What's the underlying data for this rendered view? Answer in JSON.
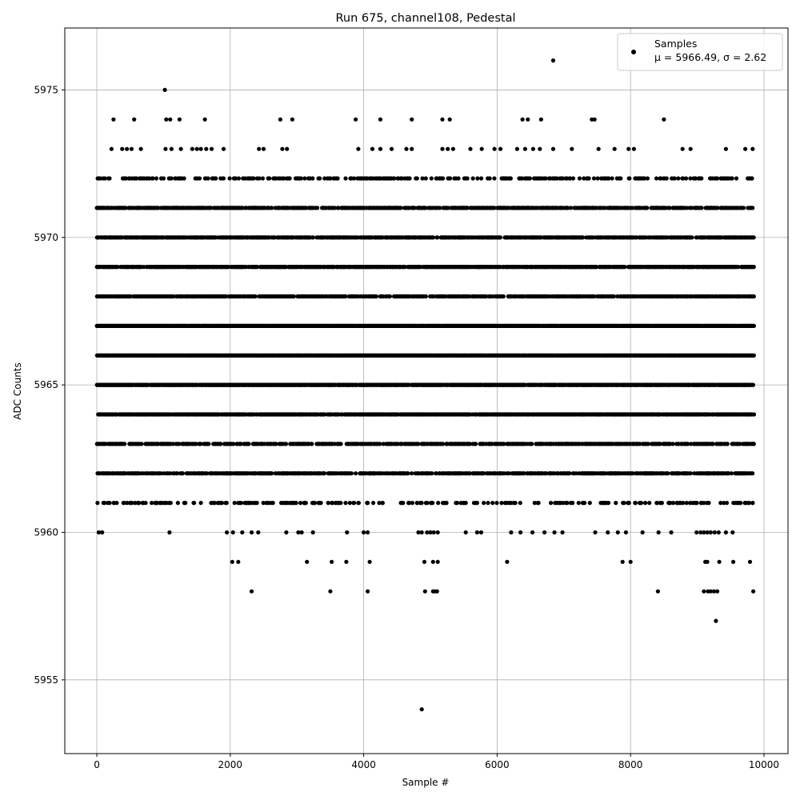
{
  "chart_data": {
    "type": "scatter",
    "title": "Run 675, channel108, Pedestal",
    "xlabel": "Sample #",
    "ylabel": "ADC Counts",
    "xlim": [
      -480,
      10360
    ],
    "ylim": [
      5952.5,
      5977.1
    ],
    "xticks": [
      0,
      2000,
      4000,
      6000,
      8000,
      10000
    ],
    "xtick_labels": [
      "0",
      "2000",
      "4000",
      "6000",
      "8000",
      "10000"
    ],
    "yticks": [
      5955,
      5960,
      5965,
      5970,
      5975
    ],
    "ytick_labels": [
      "5955",
      "5960",
      "5965",
      "5970",
      "5975"
    ],
    "grid": true,
    "legend": {
      "placement": "top-right",
      "entries": [
        {
          "series": "Samples",
          "line1": "Samples",
          "line2": "μ = 5966.49, σ = 2.62"
        }
      ]
    },
    "marker_color": "#000000",
    "series": [
      {
        "name": "Samples",
        "x_range": [
          0,
          9850
        ],
        "n_samples": 10000,
        "mean": 5966.49,
        "sigma": 2.62,
        "level_density": [
          {
            "y": 5972,
            "density": 0.25
          },
          {
            "y": 5971,
            "density": 0.55
          },
          {
            "y": 5970,
            "density": 0.7
          },
          {
            "y": 5969,
            "density": 0.75
          },
          {
            "y": 5968,
            "density": 0.55
          },
          {
            "y": 5967,
            "density": 0.98
          },
          {
            "y": 5966,
            "density": 0.98
          },
          {
            "y": 5965,
            "density": 0.85
          },
          {
            "y": 5964,
            "density": 0.75
          },
          {
            "y": 5963,
            "density": 0.5
          },
          {
            "y": 5962,
            "density": 0.55
          },
          {
            "y": 5961,
            "density": 0.18
          }
        ],
        "points": [
          {
            "x": 1020,
            "y": 5975
          },
          {
            "x": 6840,
            "y": 5976
          },
          {
            "x": 250,
            "y": 5974
          },
          {
            "x": 560,
            "y": 5974
          },
          {
            "x": 1040,
            "y": 5974
          },
          {
            "x": 1100,
            "y": 5974
          },
          {
            "x": 1240,
            "y": 5974
          },
          {
            "x": 1620,
            "y": 5974
          },
          {
            "x": 2750,
            "y": 5974
          },
          {
            "x": 2930,
            "y": 5974
          },
          {
            "x": 3880,
            "y": 5974
          },
          {
            "x": 4250,
            "y": 5974
          },
          {
            "x": 4720,
            "y": 5974
          },
          {
            "x": 5180,
            "y": 5974
          },
          {
            "x": 5290,
            "y": 5974
          },
          {
            "x": 6380,
            "y": 5974
          },
          {
            "x": 6460,
            "y": 5974
          },
          {
            "x": 6660,
            "y": 5974
          },
          {
            "x": 7420,
            "y": 5974
          },
          {
            "x": 7460,
            "y": 5974
          },
          {
            "x": 8500,
            "y": 5974
          },
          {
            "x": 220,
            "y": 5973
          },
          {
            "x": 380,
            "y": 5973
          },
          {
            "x": 450,
            "y": 5973
          },
          {
            "x": 520,
            "y": 5973
          },
          {
            "x": 660,
            "y": 5973
          },
          {
            "x": 1030,
            "y": 5973
          },
          {
            "x": 1120,
            "y": 5973
          },
          {
            "x": 1260,
            "y": 5973
          },
          {
            "x": 1430,
            "y": 5973
          },
          {
            "x": 1500,
            "y": 5973
          },
          {
            "x": 1560,
            "y": 5973
          },
          {
            "x": 1640,
            "y": 5973
          },
          {
            "x": 1720,
            "y": 5973
          },
          {
            "x": 1900,
            "y": 5973
          },
          {
            "x": 2430,
            "y": 5973
          },
          {
            "x": 2500,
            "y": 5973
          },
          {
            "x": 2780,
            "y": 5973
          },
          {
            "x": 2850,
            "y": 5973
          },
          {
            "x": 3920,
            "y": 5973
          },
          {
            "x": 4130,
            "y": 5973
          },
          {
            "x": 4250,
            "y": 5973
          },
          {
            "x": 4420,
            "y": 5973
          },
          {
            "x": 4640,
            "y": 5973
          },
          {
            "x": 4720,
            "y": 5973
          },
          {
            "x": 5180,
            "y": 5973
          },
          {
            "x": 5260,
            "y": 5973
          },
          {
            "x": 5340,
            "y": 5973
          },
          {
            "x": 5600,
            "y": 5973
          },
          {
            "x": 5770,
            "y": 5973
          },
          {
            "x": 5960,
            "y": 5973
          },
          {
            "x": 6050,
            "y": 5973
          },
          {
            "x": 6300,
            "y": 5973
          },
          {
            "x": 6420,
            "y": 5973
          },
          {
            "x": 6540,
            "y": 5973
          },
          {
            "x": 6640,
            "y": 5973
          },
          {
            "x": 6840,
            "y": 5973
          },
          {
            "x": 7120,
            "y": 5973
          },
          {
            "x": 7520,
            "y": 5973
          },
          {
            "x": 7760,
            "y": 5973
          },
          {
            "x": 7970,
            "y": 5973
          },
          {
            "x": 8050,
            "y": 5973
          },
          {
            "x": 8780,
            "y": 5973
          },
          {
            "x": 8900,
            "y": 5973
          },
          {
            "x": 9430,
            "y": 5973
          },
          {
            "x": 9720,
            "y": 5973
          },
          {
            "x": 9830,
            "y": 5973
          },
          {
            "x": 255,
            "y": 5961
          },
          {
            "x": 1020,
            "y": 5961
          },
          {
            "x": 1310,
            "y": 5961
          },
          {
            "x": 1560,
            "y": 5961
          },
          {
            "x": 1930,
            "y": 5961
          },
          {
            "x": 2120,
            "y": 5961
          },
          {
            "x": 2250,
            "y": 5961
          },
          {
            "x": 2400,
            "y": 5961
          },
          {
            "x": 2930,
            "y": 5961
          },
          {
            "x": 3110,
            "y": 5961
          },
          {
            "x": 3520,
            "y": 5961
          },
          {
            "x": 4050,
            "y": 5961
          },
          {
            "x": 4280,
            "y": 5961
          },
          {
            "x": 4800,
            "y": 5961
          },
          {
            "x": 5240,
            "y": 5961
          },
          {
            "x": 5530,
            "y": 5961
          },
          {
            "x": 5800,
            "y": 5961
          },
          {
            "x": 6120,
            "y": 5961
          },
          {
            "x": 6620,
            "y": 5961
          },
          {
            "x": 6950,
            "y": 5961
          },
          {
            "x": 7390,
            "y": 5961
          },
          {
            "x": 7640,
            "y": 5961
          },
          {
            "x": 8160,
            "y": 5961
          },
          {
            "x": 8640,
            "y": 5961
          },
          {
            "x": 9100,
            "y": 5961
          },
          {
            "x": 9350,
            "y": 5961
          },
          {
            "x": 9830,
            "y": 5961
          },
          {
            "x": 30,
            "y": 5960
          },
          {
            "x": 80,
            "y": 5960
          },
          {
            "x": 1090,
            "y": 5960
          },
          {
            "x": 1950,
            "y": 5960
          },
          {
            "x": 2040,
            "y": 5960
          },
          {
            "x": 2180,
            "y": 5960
          },
          {
            "x": 2320,
            "y": 5960
          },
          {
            "x": 2420,
            "y": 5960
          },
          {
            "x": 2840,
            "y": 5960
          },
          {
            "x": 3020,
            "y": 5960
          },
          {
            "x": 3070,
            "y": 5960
          },
          {
            "x": 3240,
            "y": 5960
          },
          {
            "x": 3750,
            "y": 5960
          },
          {
            "x": 4000,
            "y": 5960
          },
          {
            "x": 4060,
            "y": 5960
          },
          {
            "x": 4820,
            "y": 5960
          },
          {
            "x": 4870,
            "y": 5960
          },
          {
            "x": 4950,
            "y": 5960
          },
          {
            "x": 5000,
            "y": 5960
          },
          {
            "x": 5050,
            "y": 5960
          },
          {
            "x": 5110,
            "y": 5960
          },
          {
            "x": 5530,
            "y": 5960
          },
          {
            "x": 5700,
            "y": 5960
          },
          {
            "x": 5760,
            "y": 5960
          },
          {
            "x": 6210,
            "y": 5960
          },
          {
            "x": 6350,
            "y": 5960
          },
          {
            "x": 6530,
            "y": 5960
          },
          {
            "x": 6710,
            "y": 5960
          },
          {
            "x": 6860,
            "y": 5960
          },
          {
            "x": 6980,
            "y": 5960
          },
          {
            "x": 7470,
            "y": 5960
          },
          {
            "x": 7660,
            "y": 5960
          },
          {
            "x": 7810,
            "y": 5960
          },
          {
            "x": 7930,
            "y": 5960
          },
          {
            "x": 8180,
            "y": 5960
          },
          {
            "x": 8420,
            "y": 5960
          },
          {
            "x": 8610,
            "y": 5960
          },
          {
            "x": 8990,
            "y": 5960
          },
          {
            "x": 9050,
            "y": 5960
          },
          {
            "x": 9100,
            "y": 5960
          },
          {
            "x": 9150,
            "y": 5960
          },
          {
            "x": 9200,
            "y": 5960
          },
          {
            "x": 9260,
            "y": 5960
          },
          {
            "x": 9320,
            "y": 5960
          },
          {
            "x": 9430,
            "y": 5960
          },
          {
            "x": 9530,
            "y": 5960
          },
          {
            "x": 2030,
            "y": 5959
          },
          {
            "x": 2120,
            "y": 5959
          },
          {
            "x": 3150,
            "y": 5959
          },
          {
            "x": 3520,
            "y": 5959
          },
          {
            "x": 3740,
            "y": 5959
          },
          {
            "x": 4090,
            "y": 5959
          },
          {
            "x": 4910,
            "y": 5959
          },
          {
            "x": 5040,
            "y": 5959
          },
          {
            "x": 5110,
            "y": 5959
          },
          {
            "x": 6150,
            "y": 5959
          },
          {
            "x": 7880,
            "y": 5959
          },
          {
            "x": 8000,
            "y": 5959
          },
          {
            "x": 9120,
            "y": 5959
          },
          {
            "x": 9150,
            "y": 5959
          },
          {
            "x": 9330,
            "y": 5959
          },
          {
            "x": 9540,
            "y": 5959
          },
          {
            "x": 9790,
            "y": 5959
          },
          {
            "x": 2320,
            "y": 5958
          },
          {
            "x": 3500,
            "y": 5958
          },
          {
            "x": 4060,
            "y": 5958
          },
          {
            "x": 4920,
            "y": 5958
          },
          {
            "x": 5040,
            "y": 5958
          },
          {
            "x": 5070,
            "y": 5958
          },
          {
            "x": 5100,
            "y": 5958
          },
          {
            "x": 8410,
            "y": 5958
          },
          {
            "x": 9100,
            "y": 5958
          },
          {
            "x": 9160,
            "y": 5958
          },
          {
            "x": 9200,
            "y": 5958
          },
          {
            "x": 9250,
            "y": 5958
          },
          {
            "x": 9300,
            "y": 5958
          },
          {
            "x": 9840,
            "y": 5958
          },
          {
            "x": 9280,
            "y": 5957
          },
          {
            "x": 4870,
            "y": 5954
          }
        ]
      }
    ]
  }
}
